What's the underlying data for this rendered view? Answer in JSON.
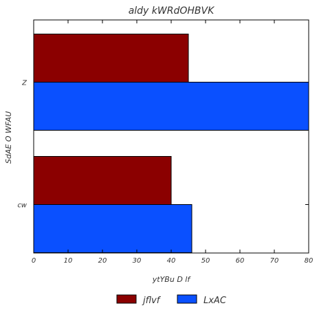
{
  "chart_data": {
    "type": "bar",
    "orientation": "horizontal",
    "title": "aldy kWRdOHBVK",
    "xlabel": "ytYBu D lf",
    "ylabel": "SdAE O WFAU",
    "categories": [
      "Z",
      "cw"
    ],
    "series": [
      {
        "name": "jflvf",
        "color": "#8b0000",
        "values": [
          45,
          40
        ]
      },
      {
        "name": "LxAC",
        "color": "#0a50ff",
        "values": [
          80,
          46
        ]
      }
    ],
    "xlim": [
      0,
      80
    ],
    "xticks": [
      "0",
      "10",
      "20",
      "30",
      "40",
      "50",
      "60",
      "70",
      "80"
    ],
    "grid": false,
    "legend_position": "bottom-center"
  }
}
